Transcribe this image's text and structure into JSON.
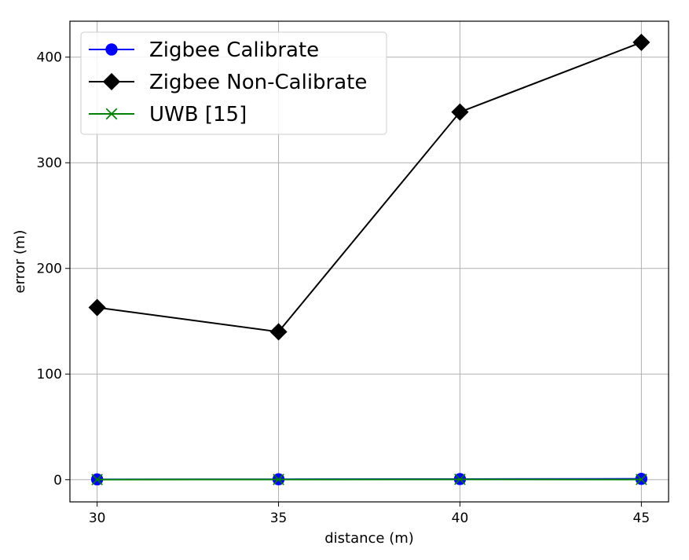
{
  "chart_data": {
    "type": "line",
    "title": "",
    "xlabel": "distance (m)",
    "ylabel": "error (m)",
    "x": [
      30,
      35,
      40,
      45
    ],
    "xticks": [
      "30",
      "35",
      "40",
      "45"
    ],
    "yticks": [
      "0",
      "100",
      "200",
      "300",
      "400"
    ],
    "xlim": [
      29.25,
      45.75
    ],
    "ylim": [
      -21,
      434
    ],
    "grid": true,
    "legend_position": "top-left",
    "series": [
      {
        "name": "Zigbee Calibrate",
        "values": [
          0.3,
          0.4,
          0.6,
          0.8
        ],
        "color": "#0000ff",
        "marker": "circle"
      },
      {
        "name": "Zigbee Non-Calibrate",
        "values": [
          163,
          140,
          348,
          414
        ],
        "color": "#000000",
        "marker": "diamond"
      },
      {
        "name": "UWB [15]",
        "values": [
          0.1,
          0.2,
          0.3,
          0.2
        ],
        "color": "#008000",
        "marker": "x"
      }
    ]
  }
}
